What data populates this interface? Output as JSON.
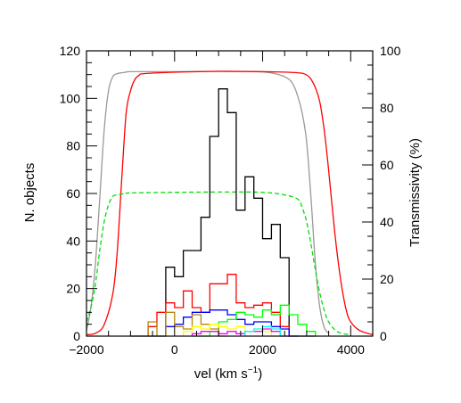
{
  "chart_data": {
    "type": "line",
    "title": "",
    "xlabel": "vel  (km s",
    "xlabel_sup": "−1",
    "xlabel_close": ")",
    "ylabel_left": "N. objects",
    "ylabel_right": "Transmissivity (%)",
    "xlim": [
      -2000,
      4500
    ],
    "ylim_left": [
      0,
      120
    ],
    "ylim_right": [
      0,
      100
    ],
    "x_ticks": [
      -2000,
      0,
      2000,
      4000
    ],
    "x_tick_labels": [
      "−2000",
      "0",
      "2000",
      "4000"
    ],
    "y_left_ticks": [
      0,
      20,
      40,
      60,
      80,
      100,
      120
    ],
    "y_left_tick_labels": [
      "0",
      "20",
      "40",
      "60",
      "80",
      "100",
      "120"
    ],
    "y_right_ticks": [
      0,
      20,
      40,
      60,
      80,
      100
    ],
    "y_right_tick_labels": [
      "0",
      "20",
      "40",
      "60",
      "80",
      "100"
    ],
    "grid": false,
    "legend": "none",
    "histograms": [
      {
        "color": "#000000",
        "bin_width": 200,
        "bin_starts": [
          -1000,
          -800,
          -600,
          -400,
          -200,
          0,
          200,
          400,
          600,
          800,
          1000,
          1200,
          1400,
          1600,
          1800,
          2000,
          2200,
          2400,
          2600,
          2800,
          3000
        ],
        "counts": [
          0,
          0,
          0,
          0,
          29,
          25,
          36,
          36,
          50,
          84,
          104,
          94,
          53,
          67,
          58,
          41,
          47,
          33,
          0,
          0,
          0
        ]
      },
      {
        "color": "#ff0000",
        "bin_width": 200,
        "bin_starts": [
          -600,
          -400,
          -200,
          0,
          200,
          400,
          600,
          800,
          1000,
          1200,
          1400,
          1600,
          1800,
          2000,
          2200,
          2400
        ],
        "counts": [
          4,
          10,
          14,
          12,
          19,
          12,
          10,
          22,
          22,
          26,
          14,
          12,
          13,
          14,
          10,
          4
        ]
      },
      {
        "color": "#0000ff",
        "bin_width": 200,
        "bin_starts": [
          -200,
          0,
          200,
          400,
          600,
          800,
          1000,
          1200,
          1400,
          1600,
          1800,
          2000,
          2200,
          2400,
          2600
        ],
        "counts": [
          4,
          5,
          8,
          10,
          10,
          11,
          11,
          9,
          7,
          5,
          6,
          6,
          4,
          3,
          0
        ]
      },
      {
        "color": "#00ff00",
        "bin_width": 200,
        "bin_starts": [
          400,
          600,
          800,
          1000,
          1200,
          1400,
          1600,
          1800,
          2000,
          2200,
          2400,
          2600,
          2800,
          3000
        ],
        "counts": [
          0,
          0,
          2,
          6,
          7,
          10,
          9,
          8,
          11,
          9,
          13,
          9,
          5,
          2
        ]
      },
      {
        "color": "#b8860b",
        "bin_width": 200,
        "bin_starts": [
          -600,
          -400,
          -200,
          0,
          200,
          400,
          600,
          800,
          1000
        ],
        "counts": [
          6,
          0,
          10,
          4,
          3,
          9,
          5,
          3,
          0
        ]
      },
      {
        "color": "#ffff00",
        "bin_width": 200,
        "bin_starts": [
          200,
          400,
          600,
          800,
          1000,
          1200,
          1400,
          1600,
          1800,
          2000,
          2200
        ],
        "counts": [
          2,
          4,
          3,
          5,
          4,
          3,
          4,
          2,
          3,
          2,
          0
        ]
      },
      {
        "color": "#ff00ff",
        "bin_width": 200,
        "bin_starts": [
          400,
          600,
          800,
          1000,
          1200,
          1400,
          1600,
          1800,
          2000,
          2200,
          2400
        ],
        "counts": [
          1,
          2,
          2,
          1,
          2,
          1,
          2,
          2,
          3,
          2,
          0
        ]
      },
      {
        "color": "#00ffff",
        "bin_width": 200,
        "bin_starts": [
          1600,
          1800,
          2000,
          2200,
          2400
        ],
        "counts": [
          2,
          3,
          4,
          3,
          0
        ]
      }
    ],
    "transmissivity_curves": [
      {
        "color": "#999999",
        "style": "solid",
        "x": [
          -2000,
          -1900,
          -1800,
          -1700,
          -1600,
          -1500,
          -1400,
          -1300,
          -1200,
          -1100,
          -1000,
          0,
          1000,
          2000,
          2400,
          2600,
          2700,
          2800,
          2900,
          3000,
          3100,
          3200,
          3300,
          3400,
          3500
        ],
        "y": [
          2,
          10,
          25,
          48,
          72,
          86,
          91,
          92,
          92.3,
          92.5,
          92.7,
          92.7,
          92.8,
          92.6,
          91.5,
          90,
          88,
          84,
          78,
          68,
          48,
          25,
          10,
          3,
          1
        ]
      },
      {
        "color": "#ff0000",
        "style": "solid",
        "x": [
          -2000,
          -1800,
          -1600,
          -1400,
          -1300,
          -1200,
          -1100,
          -1000,
          -900,
          -800,
          -700,
          0,
          1000,
          2000,
          2800,
          3000,
          3100,
          3200,
          3300,
          3400,
          3500,
          3600,
          3700,
          3800,
          3900,
          4000,
          4200,
          4500
        ],
        "y": [
          0.5,
          1,
          4,
          15,
          30,
          55,
          78,
          86,
          90,
          91.5,
          92,
          92.5,
          92.8,
          92.7,
          92.3,
          91.5,
          90,
          87,
          82,
          72,
          58,
          42,
          28,
          17,
          9,
          5,
          2,
          0.5
        ]
      },
      {
        "color": "#00e000",
        "style": "dashed",
        "x": [
          -2000,
          -1900,
          -1800,
          -1700,
          -1600,
          -1500,
          -1400,
          -1300,
          -1200,
          -1100,
          -1000,
          0,
          1000,
          2000,
          2500,
          2800,
          2900,
          3000,
          3100,
          3200,
          3300,
          3400,
          3500,
          3700,
          4000
        ],
        "y": [
          5,
          10,
          18,
          30,
          40,
          46,
          49,
          49.5,
          49.8,
          50,
          50.2,
          50.4,
          50.5,
          50.4,
          49.5,
          48,
          45,
          40,
          32,
          23,
          15,
          9,
          5,
          1.5,
          0.5
        ]
      }
    ]
  }
}
